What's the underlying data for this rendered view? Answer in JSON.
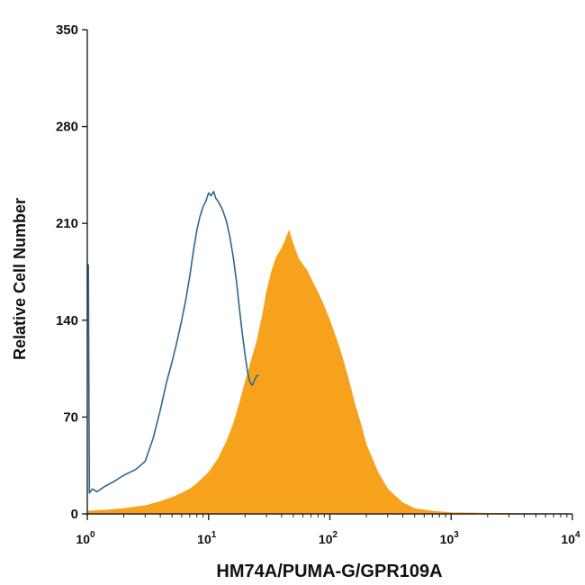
{
  "chart_data": {
    "type": "area",
    "xlabel": "HM74A/PUMA-G/GPR109A",
    "ylabel": "Relative Cell Number",
    "xscale": "log",
    "xlim": [
      1,
      10000
    ],
    "ylim": [
      0,
      350
    ],
    "yticks": [
      "0",
      "70",
      "140",
      "210",
      "280",
      "350"
    ],
    "xticks": [
      {
        "base": "10",
        "exp": "0"
      },
      {
        "base": "10",
        "exp": "1"
      },
      {
        "base": "10",
        "exp": "2"
      },
      {
        "base": "10",
        "exp": "3"
      },
      {
        "base": "10",
        "exp": "4"
      }
    ],
    "grid": false,
    "series": [
      {
        "style": "outline",
        "color": "#2f6690",
        "x": [
          1.0,
          1.02,
          1.04,
          1.1,
          1.2,
          1.4,
          1.7,
          2.0,
          2.5,
          3.0,
          3.5,
          4.0,
          4.5,
          5.0,
          5.5,
          6.0,
          6.5,
          7.0,
          7.5,
          8.0,
          8.5,
          9.0,
          9.5,
          10.0,
          10.5,
          11.0,
          11.5,
          12.0,
          13.0,
          14.0,
          15.0,
          16.0,
          17.0,
          18.0,
          19.0,
          20.0,
          21.0,
          22.0,
          23.0,
          24.0,
          25.0,
          26.0
        ],
        "y": [
          180,
          180,
          15,
          18,
          16,
          20,
          24,
          28,
          32,
          38,
          55,
          75,
          95,
          110,
          125,
          140,
          155,
          172,
          190,
          205,
          215,
          222,
          226,
          232,
          230,
          233,
          228,
          226,
          220,
          212,
          200,
          185,
          168,
          148,
          130,
          115,
          102,
          95,
          93,
          97,
          100,
          100
        ]
      },
      {
        "style": "filled",
        "color": "#f7a21d",
        "x": [
          1.0,
          1.5,
          2.0,
          3.0,
          4.0,
          5.0,
          6.0,
          7.0,
          8.0,
          10.0,
          12.0,
          14.0,
          16.0,
          18.0,
          20.0,
          22.0,
          25.0,
          28.0,
          30.0,
          33.0,
          36.0,
          40.0,
          43.0,
          46.0,
          50.0,
          55.0,
          60.0,
          65.0,
          70.0,
          80.0,
          90.0,
          100.0,
          120.0,
          140.0,
          160.0,
          180.0,
          200.0,
          250.0,
          300.0,
          400.0,
          500.0,
          700.0,
          1000.0,
          2000.0,
          5000.0,
          7000.0
        ],
        "y": [
          2,
          3,
          4,
          6,
          9,
          12,
          15,
          18,
          22,
          30,
          40,
          52,
          65,
          80,
          95,
          108,
          125,
          145,
          160,
          175,
          185,
          192,
          198,
          205,
          195,
          185,
          180,
          176,
          170,
          160,
          150,
          140,
          120,
          100,
          80,
          65,
          50,
          30,
          18,
          8,
          4,
          2,
          1,
          0.5,
          0.3,
          0
        ]
      }
    ]
  }
}
